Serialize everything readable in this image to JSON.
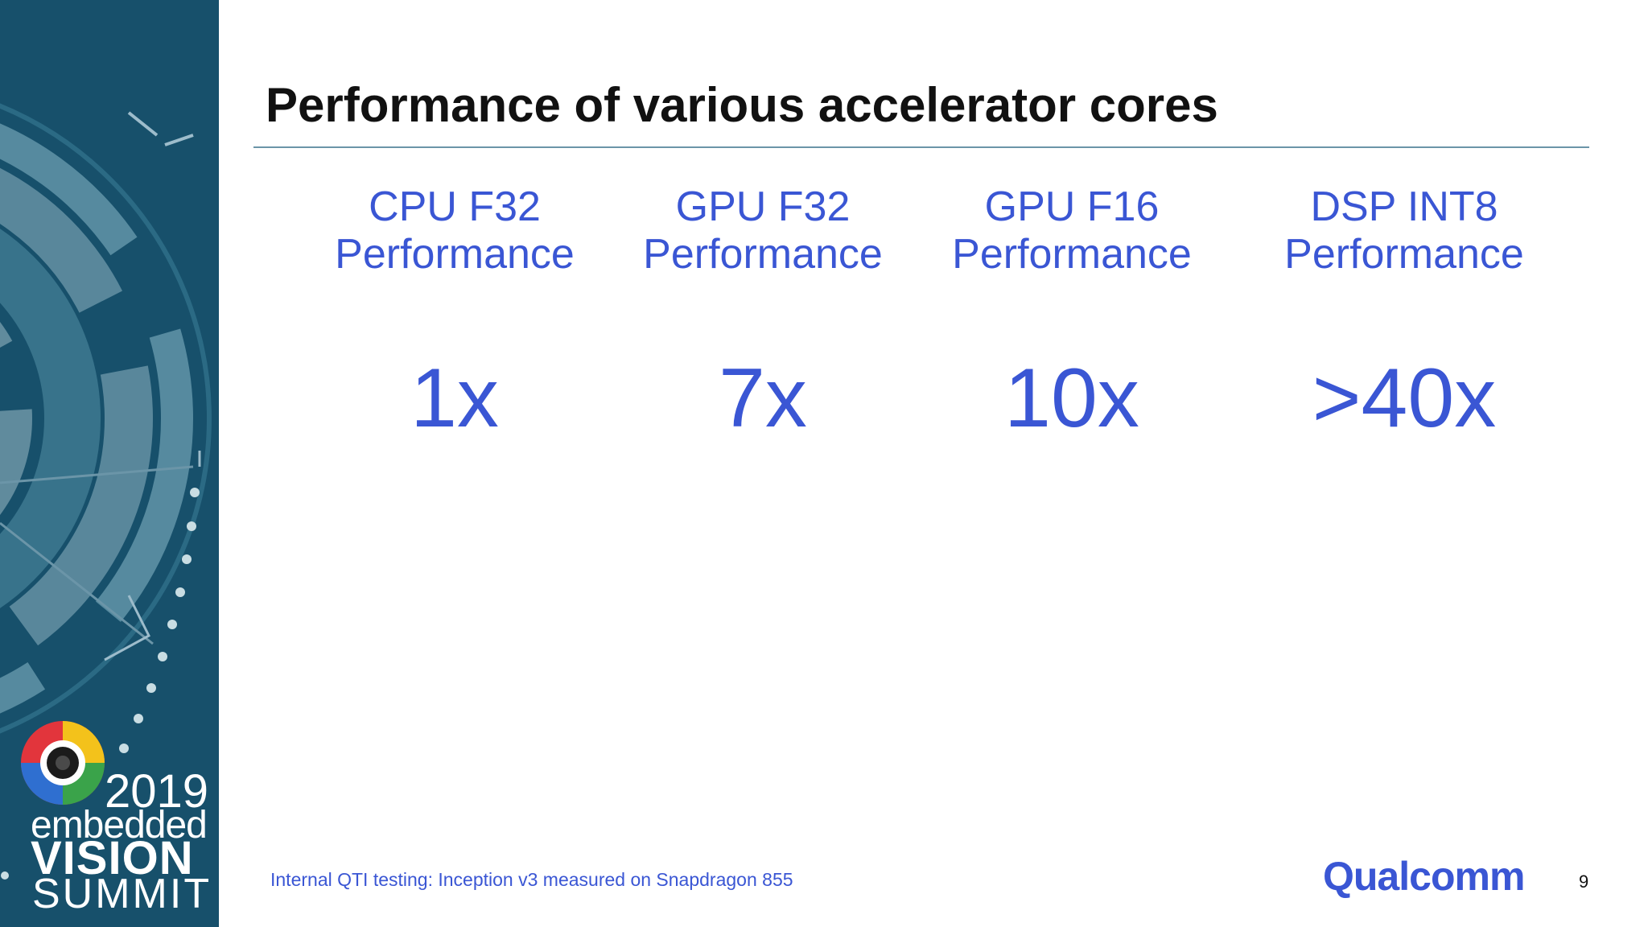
{
  "slide": {
    "title": "Performance of various accelerator cores",
    "columns": [
      {
        "label_line1": "CPU F32",
        "label_line2": "Performance",
        "value": "1x"
      },
      {
        "label_line1": "GPU F32",
        "label_line2": "Performance",
        "value": "7x"
      },
      {
        "label_line1": "GPU F16",
        "label_line2": "Performance",
        "value": "10x"
      },
      {
        "label_line1": "DSP INT8",
        "label_line2": "Performance",
        "value": ">40x"
      }
    ],
    "footnote": "Internal QTI testing:  Inception v3 measured on Snapdragon 855",
    "company": "Qualcomm",
    "page_number": "9"
  },
  "branding": {
    "year": "2019",
    "line1": "embedded",
    "line2": "VISION",
    "line3": "SUMMIT"
  },
  "colors": {
    "sidebar": "#17506b",
    "accent": "#3a56d4",
    "title": "#111111"
  }
}
